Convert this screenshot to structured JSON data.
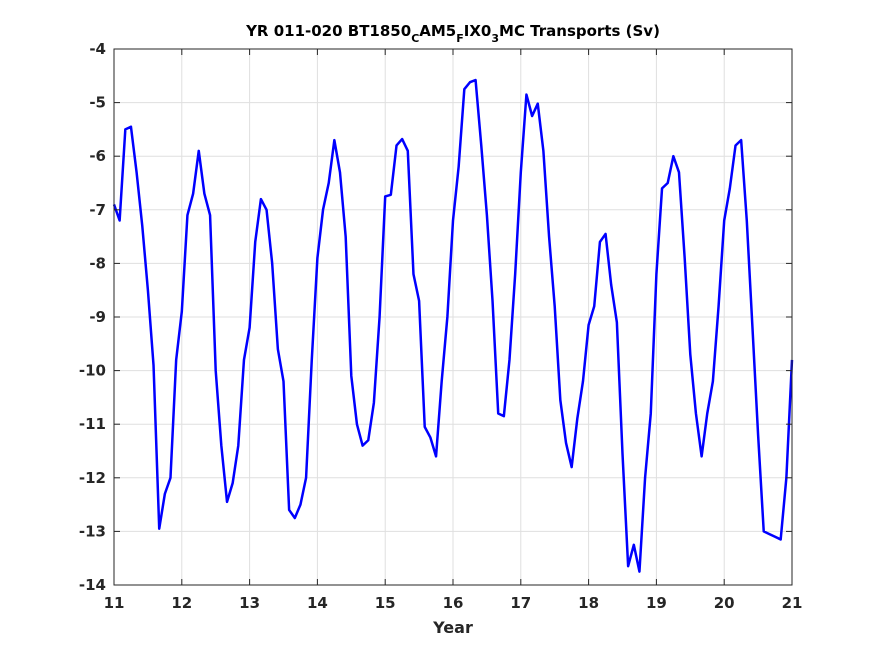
{
  "chart_data": {
    "type": "line",
    "title_parts": [
      {
        "text": "YR 011-020 BT1850",
        "sub": false
      },
      {
        "text": "C",
        "sub": true
      },
      {
        "text": "AM5",
        "sub": false
      },
      {
        "text": "F",
        "sub": true
      },
      {
        "text": "IX0",
        "sub": false
      },
      {
        "text": "3",
        "sub": true
      },
      {
        "text": "MC Transports (Sv)",
        "sub": false
      }
    ],
    "xlabel": "Year",
    "ylabel": "",
    "xlim": [
      11,
      21
    ],
    "ylim": [
      -14,
      -4
    ],
    "xticks": [
      11,
      12,
      13,
      14,
      15,
      16,
      17,
      18,
      19,
      20,
      21
    ],
    "yticks": [
      -4,
      -5,
      -6,
      -7,
      -8,
      -9,
      -10,
      -11,
      -12,
      -13,
      -14
    ],
    "grid": true,
    "series": [
      {
        "color": "#0000ff",
        "x": [
          11.0,
          11.083,
          11.167,
          11.25,
          11.333,
          11.417,
          11.5,
          11.583,
          11.667,
          11.75,
          11.833,
          11.917,
          12.0,
          12.083,
          12.167,
          12.25,
          12.333,
          12.417,
          12.5,
          12.583,
          12.667,
          12.75,
          12.833,
          12.917,
          13.0,
          13.083,
          13.167,
          13.25,
          13.333,
          13.417,
          13.5,
          13.583,
          13.667,
          13.75,
          13.833,
          13.917,
          14.0,
          14.083,
          14.167,
          14.25,
          14.333,
          14.417,
          14.5,
          14.583,
          14.667,
          14.75,
          14.833,
          14.917,
          15.0,
          15.083,
          15.167,
          15.25,
          15.333,
          15.417,
          15.5,
          15.583,
          15.667,
          15.75,
          15.833,
          15.917,
          16.0,
          16.083,
          16.167,
          16.25,
          16.333,
          16.417,
          16.5,
          16.583,
          16.667,
          16.75,
          16.833,
          16.917,
          17.0,
          17.083,
          17.167,
          17.25,
          17.333,
          17.417,
          17.5,
          17.583,
          17.667,
          17.75,
          17.833,
          17.917,
          18.0,
          18.083,
          18.167,
          18.25,
          18.333,
          18.417,
          18.5,
          18.583,
          18.667,
          18.75,
          18.833,
          18.917,
          19.0,
          19.083,
          19.167,
          19.25,
          19.333,
          19.417,
          19.5,
          19.583,
          19.667,
          19.75,
          19.833,
          19.917,
          20.0,
          20.083,
          20.167,
          20.25,
          20.333,
          20.417,
          20.5,
          20.583,
          20.667,
          20.75,
          20.833,
          20.917,
          21.0
        ],
        "y": [
          -6.9,
          -7.2,
          -5.5,
          -5.45,
          -6.3,
          -7.3,
          -8.5,
          -9.9,
          -12.95,
          -12.3,
          -12.0,
          -9.8,
          -8.9,
          -7.1,
          -6.7,
          -5.9,
          -6.7,
          -7.1,
          -10.0,
          -11.4,
          -12.45,
          -12.1,
          -11.4,
          -9.8,
          -9.2,
          -7.6,
          -6.8,
          -7.0,
          -8.0,
          -9.6,
          -10.2,
          -12.6,
          -12.75,
          -12.5,
          -12.0,
          -9.8,
          -7.9,
          -7.0,
          -6.5,
          -5.7,
          -6.3,
          -7.5,
          -10.1,
          -11.0,
          -11.4,
          -11.3,
          -10.6,
          -9.0,
          -6.75,
          -6.72,
          -5.8,
          -5.68,
          -5.9,
          -8.2,
          -8.7,
          -11.05,
          -11.25,
          -11.6,
          -10.2,
          -9.0,
          -7.2,
          -6.2,
          -4.75,
          -4.62,
          -4.58,
          -5.8,
          -7.1,
          -8.7,
          -10.8,
          -10.85,
          -9.8,
          -8.2,
          -6.3,
          -4.85,
          -5.25,
          -5.02,
          -5.9,
          -7.5,
          -8.8,
          -10.55,
          -11.35,
          -11.8,
          -10.9,
          -10.2,
          -9.15,
          -8.8,
          -7.6,
          -7.45,
          -8.4,
          -9.1,
          -11.55,
          -13.65,
          -13.25,
          -13.75,
          -12.0,
          -10.8,
          -8.2,
          -6.6,
          -6.5,
          -6.0,
          -6.3,
          -7.9,
          -9.7,
          -10.8,
          -11.6,
          -10.8,
          -10.2,
          -8.8,
          -7.2,
          -6.6,
          -5.8,
          -5.7,
          -7.2,
          -9.2,
          -11.2,
          -13.0,
          -13.05,
          -13.1,
          -13.15,
          -12.0,
          -9.8
        ]
      }
    ]
  }
}
